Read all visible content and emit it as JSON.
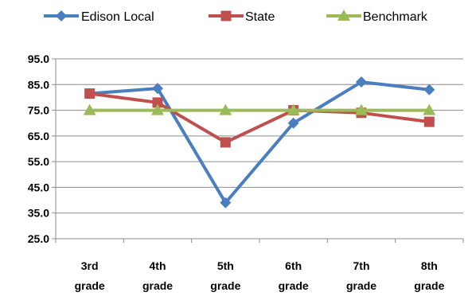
{
  "chart_data": {
    "type": "line",
    "categories": [
      [
        "3rd",
        "grade"
      ],
      [
        "4th",
        "grade"
      ],
      [
        "5th",
        "grade"
      ],
      [
        "6th",
        "grade"
      ],
      [
        "7th",
        "grade"
      ],
      [
        "8th",
        "grade"
      ]
    ],
    "ylim": [
      25.0,
      95.0
    ],
    "yticks": [
      "25.0",
      "35.0",
      "45.0",
      "55.0",
      "65.0",
      "75.0",
      "85.0",
      "95.0"
    ],
    "grid": "horizontal",
    "legend_position": "top",
    "series": [
      {
        "name": "Edison Local",
        "color": "#4a7ebf",
        "marker": "diamond",
        "values": [
          81.5,
          83.5,
          39.0,
          70.0,
          86.0,
          83.0
        ]
      },
      {
        "name": "State",
        "color": "#c0504d",
        "marker": "square",
        "values": [
          81.5,
          78.0,
          62.5,
          75.0,
          74.0,
          70.5
        ]
      },
      {
        "name": "Benchmark",
        "color": "#9bbb59",
        "marker": "triangle",
        "values": [
          75.0,
          75.0,
          75.0,
          75.0,
          75.0,
          75.0
        ]
      }
    ]
  }
}
